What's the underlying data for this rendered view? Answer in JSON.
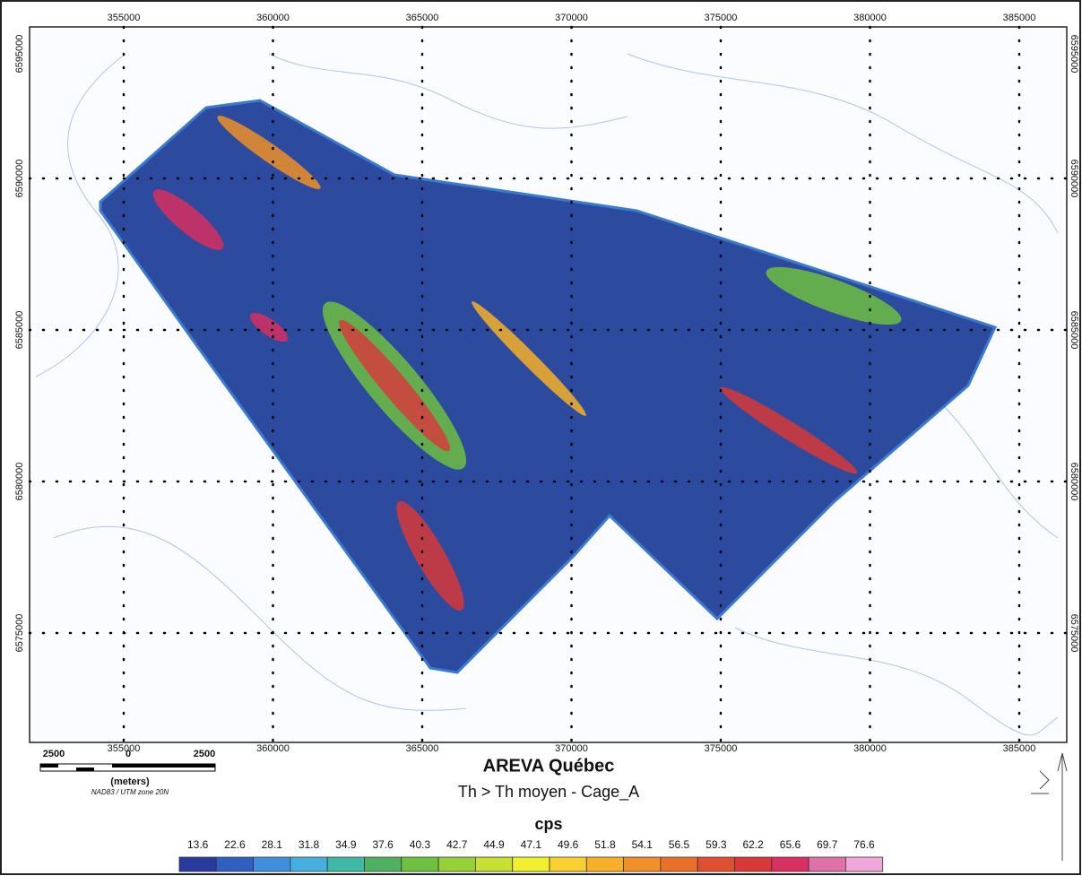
{
  "map": {
    "x_ticks": [
      355000,
      360000,
      365000,
      370000,
      375000,
      380000,
      385000
    ],
    "y_ticks": [
      6595000,
      6590000,
      6585000,
      6580000,
      6575000
    ]
  },
  "title": "AREVA Québec",
  "subtitle": "Th > Th moyen - Cage_A",
  "scale_bar": {
    "labels": [
      "2500",
      "0",
      "2500"
    ],
    "unit": "(meters)",
    "projection": "NAD83 / UTM zone 20N"
  },
  "legend": {
    "title": "cps",
    "values": [
      13.6,
      22.6,
      28.1,
      31.8,
      34.9,
      37.6,
      40.3,
      42.7,
      44.9,
      47.1,
      49.6,
      51.8,
      54.1,
      56.5,
      59.3,
      62.2,
      65.6,
      69.7,
      76.6
    ],
    "colors": [
      "#2a3a9c",
      "#2f5fc0",
      "#3f8fdc",
      "#45b0e0",
      "#3fb8a8",
      "#4fb060",
      "#6ec040",
      "#98d038",
      "#c8e030",
      "#f0f030",
      "#f8d030",
      "#f8b028",
      "#f09028",
      "#e87028",
      "#e05030",
      "#d83838",
      "#d83060",
      "#e070a8",
      "#f0a8d8"
    ]
  }
}
